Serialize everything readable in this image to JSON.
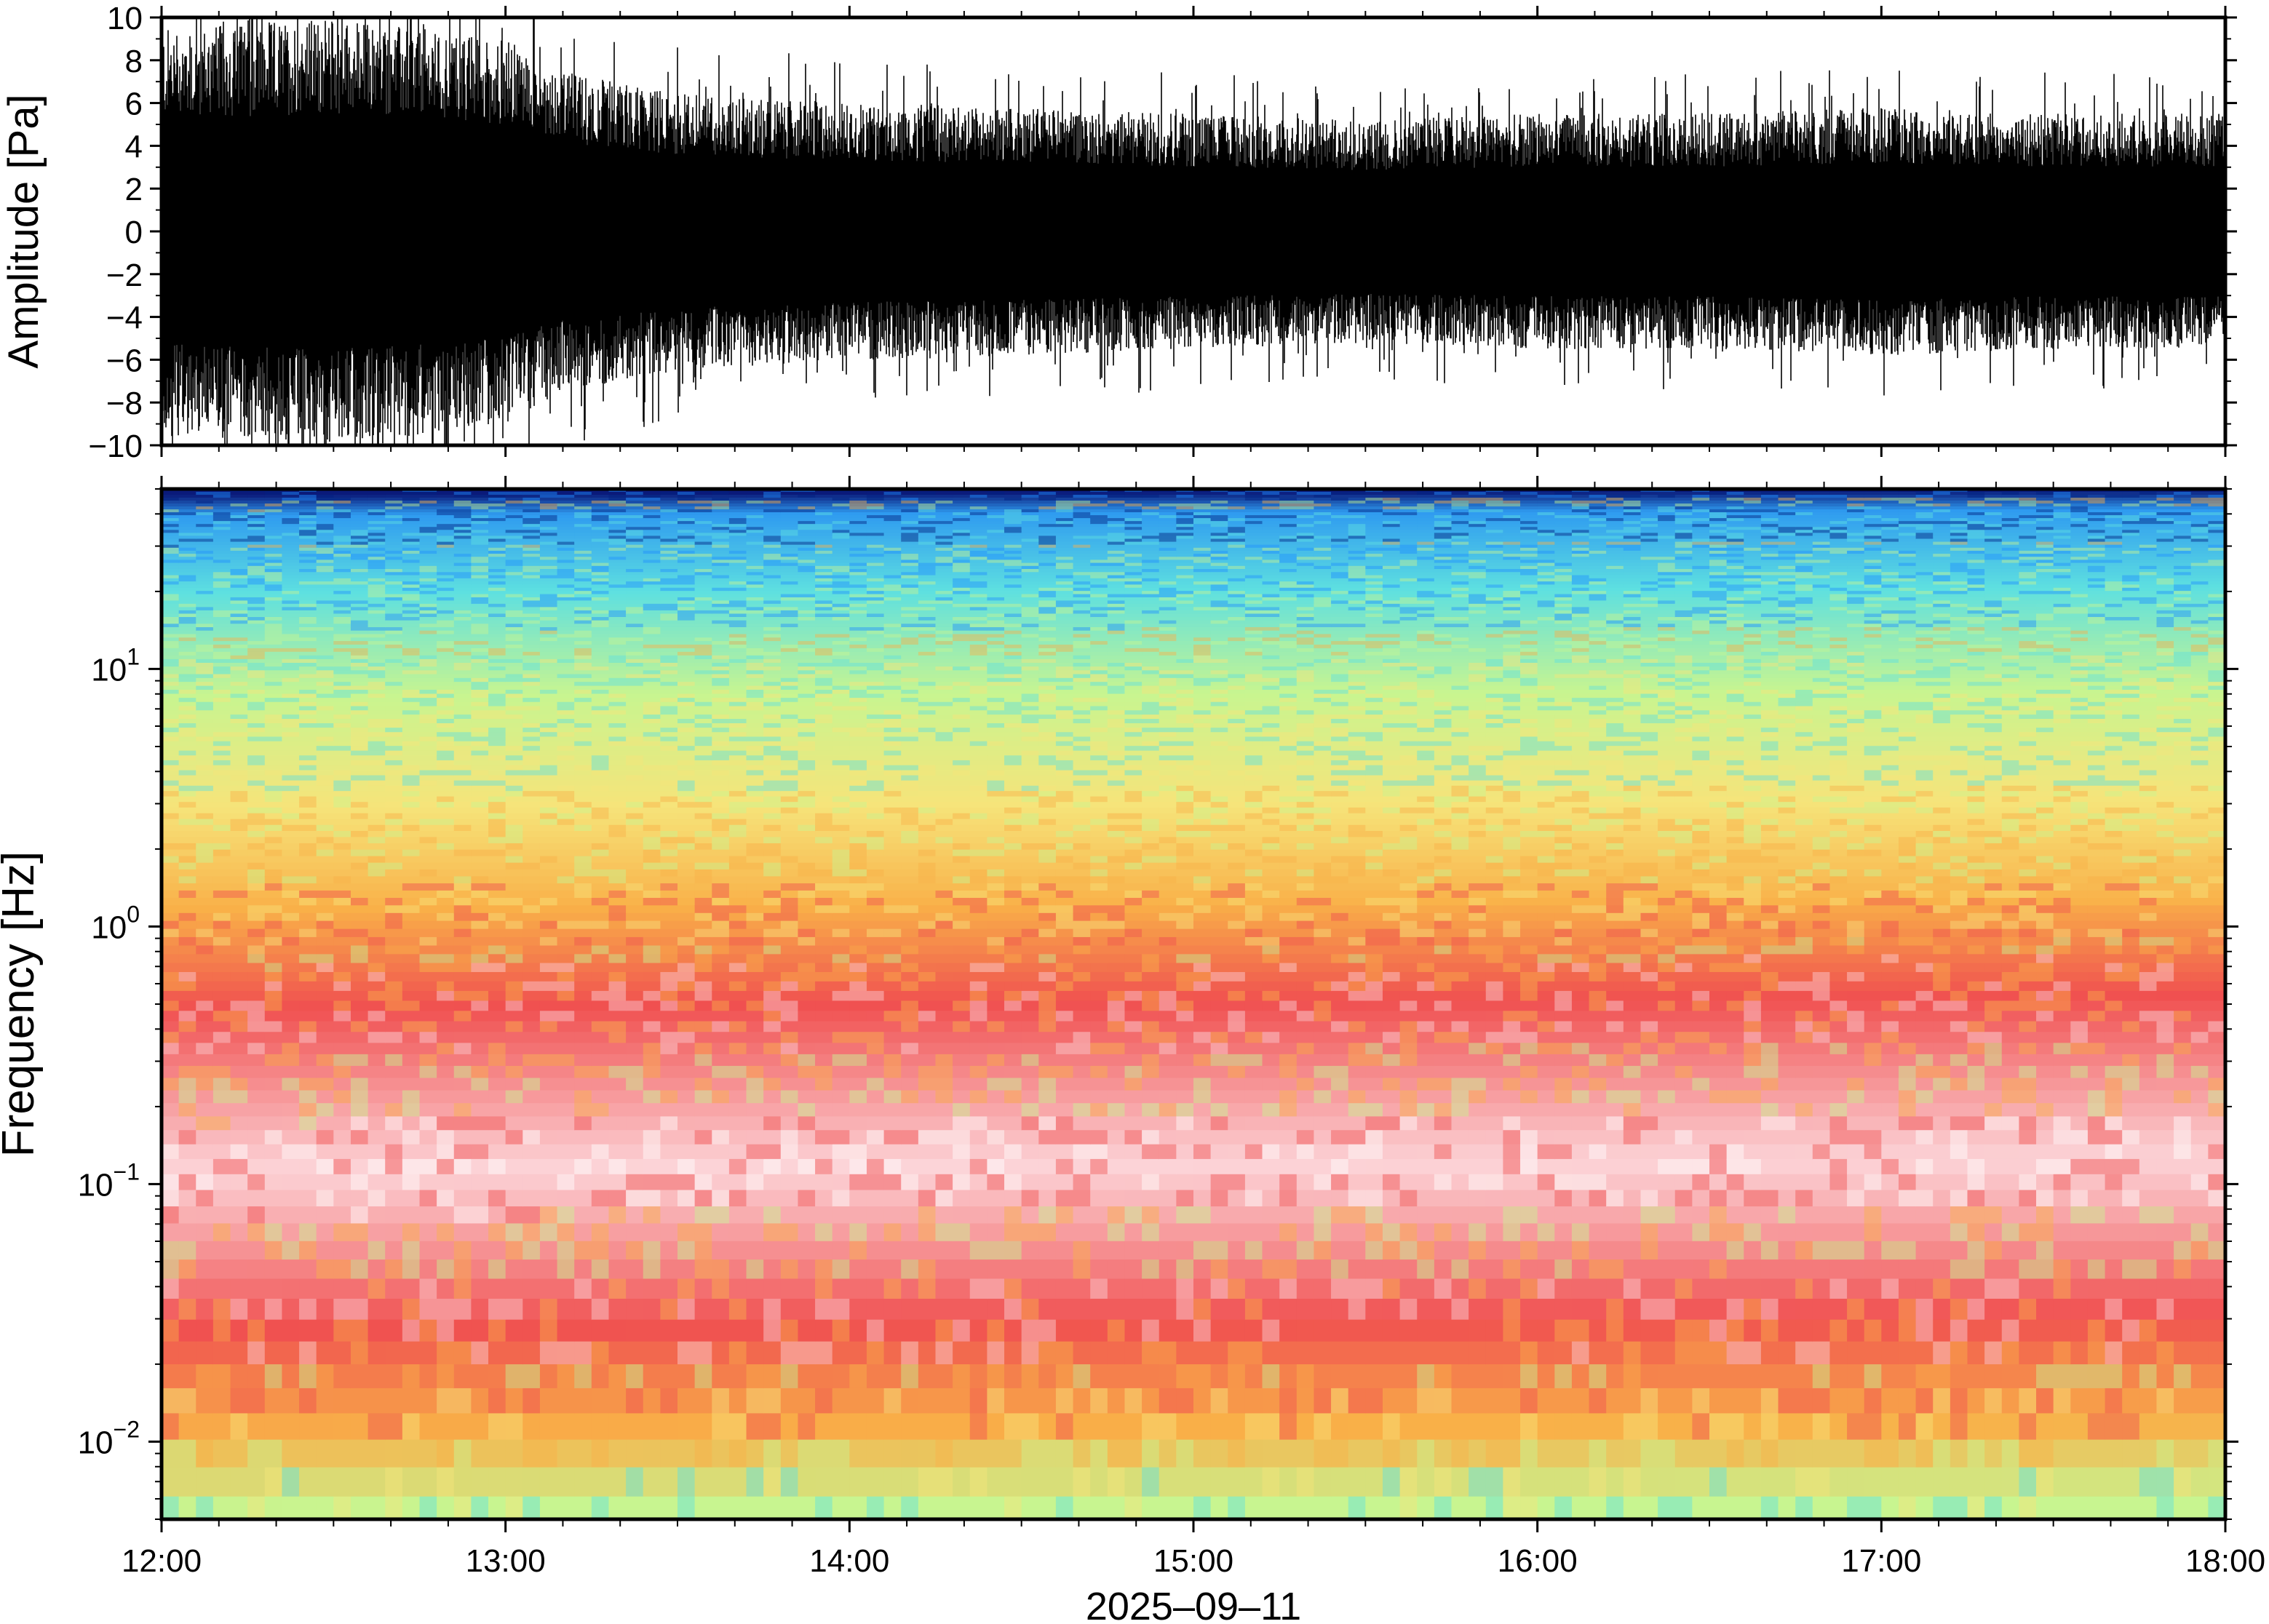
{
  "chart_data": [
    {
      "type": "line",
      "panel": "waveform",
      "title": "",
      "xlabel": "",
      "ylabel": "Amplitude [Pa]",
      "ylim": [
        -10,
        10
      ],
      "y_ticks": [
        -10,
        -8,
        -6,
        -4,
        -2,
        0,
        2,
        4,
        6,
        8,
        10
      ],
      "y_tick_labels": [
        "−10",
        "−8",
        "−6",
        "−4",
        "−2",
        "0",
        "2",
        "4",
        "6",
        "8",
        "10"
      ],
      "x_ticks": [
        "12:00",
        "13:00",
        "14:00",
        "15:00",
        "16:00",
        "17:00",
        "18:00"
      ],
      "series": [
        {
          "color": "#000000",
          "envelope_times": [
            "12:00",
            "12:30",
            "13:00",
            "13:10",
            "13:30",
            "14:00",
            "14:30",
            "15:00",
            "15:30",
            "16:00",
            "16:30",
            "17:00",
            "17:30",
            "18:00"
          ],
          "envelope_amplitude": [
            9.5,
            10,
            9.0,
            7.5,
            6.5,
            6.0,
            5.8,
            5.5,
            5.2,
            5.5,
            5.5,
            5.8,
            5.5,
            5.5
          ]
        }
      ]
    },
    {
      "type": "heatmap",
      "panel": "spectrogram",
      "title": "",
      "xlabel": "2025–09–11",
      "ylabel": "Frequency [Hz]",
      "y_scale": "log",
      "ylim": [
        0.005,
        50
      ],
      "y_ticks": [
        0.01,
        0.1,
        1,
        10
      ],
      "y_tick_labels": [
        {
          "base": "10",
          "exp": "−2"
        },
        {
          "base": "10",
          "exp": "−1"
        },
        {
          "base": "10",
          "exp": "0"
        },
        {
          "base": "10",
          "exp": "1"
        }
      ],
      "x_ticks": [
        "12:00",
        "13:00",
        "14:00",
        "15:00",
        "16:00",
        "17:00",
        "18:00"
      ],
      "xlim": [
        "12:00",
        "18:00"
      ],
      "colormap": [
        "#002080",
        "#1f8fff",
        "#5ee0e0",
        "#c8f590",
        "#f6e47a",
        "#f9b048",
        "#f05050",
        "#fcd4d8",
        "#ffffff"
      ],
      "bands": [
        {
          "freq_hz": 48,
          "color": "#0a1a7a"
        },
        {
          "freq_hz": 40,
          "color": "#2f9bf0"
        },
        {
          "freq_hz": 20,
          "color": "#5ee0e0"
        },
        {
          "freq_hz": 8,
          "color": "#c8f590"
        },
        {
          "freq_hz": 3,
          "color": "#f6e47a"
        },
        {
          "freq_hz": 1.2,
          "color": "#f9b048"
        },
        {
          "freq_hz": 0.5,
          "color": "#f05050"
        },
        {
          "freq_hz": 0.12,
          "color": "#fcd4d8"
        },
        {
          "freq_hz": 0.03,
          "color": "#f05050"
        },
        {
          "freq_hz": 0.012,
          "color": "#f9b048"
        },
        {
          "freq_hz": 0.006,
          "color": "#c8f590"
        }
      ]
    }
  ]
}
